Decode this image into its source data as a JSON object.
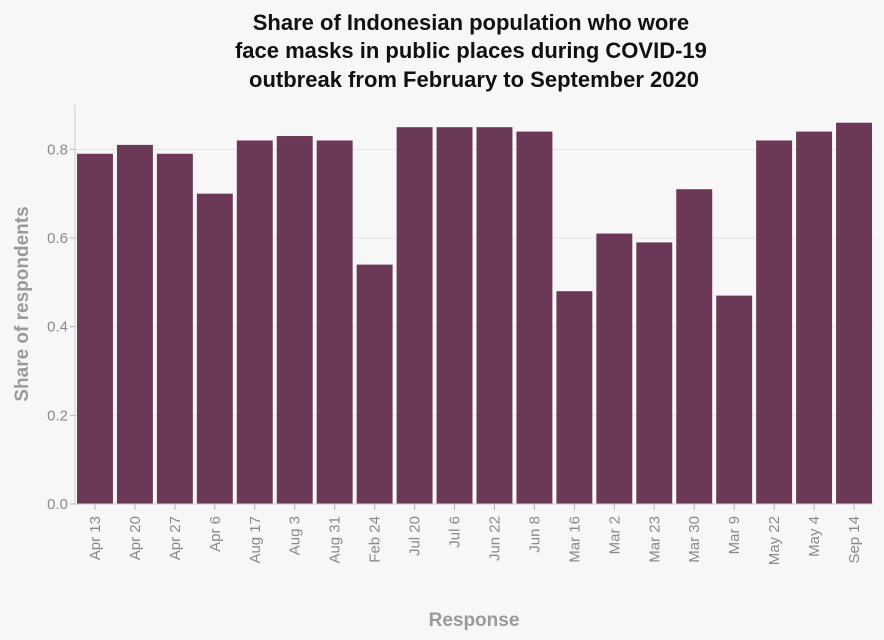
{
  "chart_data": {
    "type": "bar",
    "title": "Share of Indonesian population who wore face masks in public places during COVID-19 outbreak from February to September 2020",
    "title_lines": [
      "Share of Indonesian population who wore",
      "face masks in public places during COVID-19",
      "outbreak from February to September 2020"
    ],
    "xlabel": "Response",
    "ylabel": "Share of respondents",
    "categories": [
      "Apr 13",
      "Apr 20",
      "Apr 27",
      "Apr 6",
      "Aug 17",
      "Aug 3",
      "Aug 31",
      "Feb 24",
      "Jul 20",
      "Jul 6",
      "Jun 22",
      "Jun 8",
      "Mar 16",
      "Mar 2",
      "Mar 23",
      "Mar 30",
      "Mar 9",
      "May 22",
      "May 4",
      "Sep 14"
    ],
    "values": [
      0.79,
      0.81,
      0.79,
      0.7,
      0.82,
      0.83,
      0.82,
      0.54,
      0.85,
      0.85,
      0.85,
      0.84,
      0.48,
      0.61,
      0.59,
      0.71,
      0.47,
      0.82,
      0.84,
      0.86
    ],
    "ylim": [
      0,
      0.9
    ],
    "yticks": [
      "0.0",
      "0.2",
      "0.4",
      "0.6",
      "0.8"
    ],
    "grid": true,
    "colors": {
      "bar": "#6b3858",
      "background": "#f7f7f7",
      "grid": "#e6e6e6",
      "axis_text": "#8a8a8a"
    }
  }
}
